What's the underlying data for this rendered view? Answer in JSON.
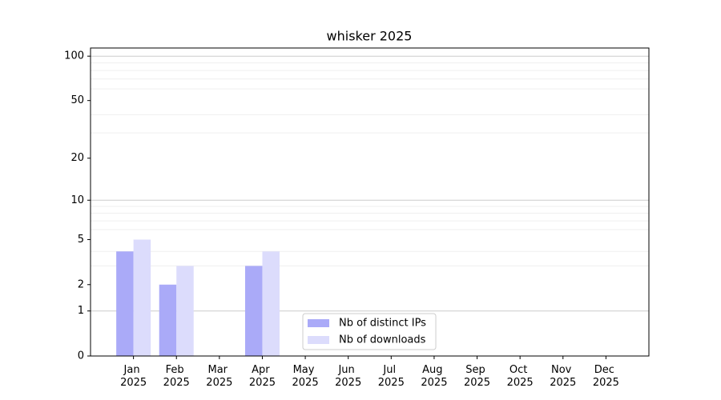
{
  "chart_data": {
    "type": "bar",
    "title": "whisker 2025",
    "categories": [
      "Jan 2025",
      "Feb 2025",
      "Mar 2025",
      "Apr 2025",
      "May 2025",
      "Jun 2025",
      "Jul 2025",
      "Aug 2025",
      "Sep 2025",
      "Oct 2025",
      "Nov 2025",
      "Dec 2025"
    ],
    "series": [
      {
        "name": "Nb of distinct IPs",
        "color": "#aaaaf8",
        "values": [
          4,
          2,
          0,
          3,
          0,
          0,
          0,
          0,
          0,
          0,
          0,
          0
        ]
      },
      {
        "name": "Nb of downloads",
        "color": "#dcdcfc",
        "values": [
          5,
          3,
          0,
          4,
          0,
          0,
          0,
          0,
          0,
          0,
          0,
          0
        ]
      }
    ],
    "yscale": "log1p",
    "ylim": [
      0,
      113.5
    ],
    "yticks": [
      0,
      1,
      2,
      5,
      10,
      20,
      50,
      100
    ],
    "major_grid": [
      1,
      10,
      100
    ],
    "minor_grid": [
      3,
      4,
      6,
      7,
      8,
      9,
      30,
      40,
      60,
      70,
      80,
      90
    ],
    "grid": true,
    "legend": "lower center"
  }
}
